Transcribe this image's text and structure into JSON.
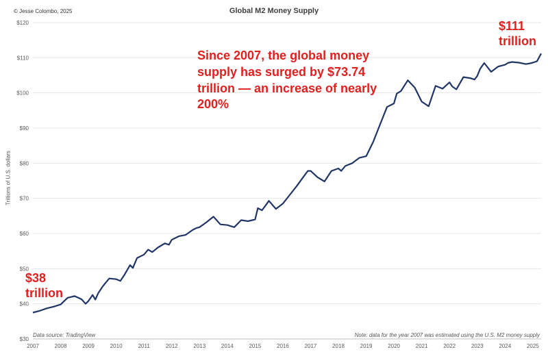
{
  "copyright": "© Jesse Colombo, 2025",
  "annotation": "Since 2007, the global money supply has surged by $73.74 trillion — an increase of nearly 200%",
  "callouts": {
    "start_value": "$38",
    "start_unit": "trillion",
    "end_value": "$111",
    "end_unit": "trillion"
  },
  "source_note": "Data source: TradingView",
  "estimate_note": "Note: data for the year 2007 was estimated using the U.S. M2 money supply",
  "colors": {
    "line": "#1f3566",
    "annotation": "#e0201f",
    "grid": "#e6e6e6"
  },
  "chart_data": {
    "type": "line",
    "title": "Global M2 Money Supply",
    "xlabel": "",
    "ylabel": "Trillions of U.S. dollars",
    "xlim": [
      2007.0,
      2025.3
    ],
    "ylim": [
      30,
      120
    ],
    "y_ticks": [
      30,
      40,
      50,
      60,
      70,
      80,
      90,
      100,
      110,
      120
    ],
    "y_tick_labels": [
      "$30",
      "$40",
      "$50",
      "$60",
      "$70",
      "$80",
      "$90",
      "$100",
      "$110",
      "$120"
    ],
    "x_ticks": [
      2007,
      2008,
      2009,
      2010,
      2011,
      2012,
      2013,
      2014,
      2015,
      2016,
      2017,
      2018,
      2019,
      2020,
      2021,
      2022,
      2023,
      2024,
      2025
    ],
    "x_tick_labels": [
      "2007",
      "2008",
      "2009",
      "2010",
      "2011",
      "2012",
      "2013",
      "2014",
      "2015",
      "2016",
      "2017",
      "2018",
      "2019",
      "2020",
      "2021",
      "2022",
      "2023",
      "2024",
      "2025"
    ],
    "grid": true,
    "series": [
      {
        "x": [
          2007.0,
          2007.25,
          2007.5,
          2007.75,
          2008.0,
          2008.25,
          2008.5,
          2008.75,
          2008.9,
          2009.0,
          2009.15,
          2009.25,
          2009.35,
          2009.5,
          2009.6,
          2009.75,
          2010.0,
          2010.15,
          2010.3,
          2010.5,
          2010.6,
          2010.75,
          2011.0,
          2011.15,
          2011.3,
          2011.5,
          2011.75,
          2011.9,
          2012.0,
          2012.25,
          2012.5,
          2012.75,
          2012.9,
          2013.0,
          2013.25,
          2013.5,
          2013.75,
          2014.0,
          2014.25,
          2014.5,
          2014.75,
          2015.0,
          2015.1,
          2015.25,
          2015.5,
          2015.75,
          2016.0,
          2016.25,
          2016.5,
          2016.75,
          2016.9,
          2017.0,
          2017.25,
          2017.5,
          2017.75,
          2018.0,
          2018.1,
          2018.25,
          2018.5,
          2018.75,
          2019.0,
          2019.25,
          2019.5,
          2019.75,
          2020.0,
          2020.1,
          2020.25,
          2020.5,
          2020.75,
          2021.0,
          2021.25,
          2021.5,
          2021.75,
          2022.0,
          2022.1,
          2022.25,
          2022.5,
          2022.75,
          2022.9,
          2023.0,
          2023.1,
          2023.25,
          2023.5,
          2023.75,
          2024.0,
          2024.1,
          2024.25,
          2024.5,
          2024.75,
          2024.9,
          2025.0,
          2025.15,
          2025.3
        ],
        "y": [
          37.5,
          38.0,
          38.7,
          39.2,
          39.8,
          41.7,
          42.2,
          41.3,
          40.0,
          40.8,
          42.5,
          41.2,
          43.0,
          44.8,
          45.8,
          47.2,
          47.0,
          46.5,
          48.3,
          51.0,
          50.2,
          53.0,
          54.0,
          55.4,
          54.7,
          56.0,
          57.2,
          56.8,
          58.2,
          59.2,
          59.6,
          61.0,
          61.6,
          61.8,
          63.2,
          64.8,
          62.6,
          62.4,
          61.8,
          63.8,
          63.5,
          64.0,
          67.2,
          66.6,
          69.3,
          67.0,
          68.5,
          71.0,
          73.5,
          76.2,
          77.8,
          77.8,
          76.0,
          74.8,
          77.8,
          78.5,
          77.8,
          79.2,
          80.0,
          81.5,
          82.0,
          86.0,
          91.0,
          96.0,
          97.0,
          99.8,
          100.5,
          103.6,
          101.5,
          97.5,
          96.2,
          102.0,
          101.2,
          103.0,
          101.8,
          101.0,
          104.5,
          104.2,
          103.8,
          104.8,
          106.8,
          108.5,
          106.0,
          107.5,
          108.0,
          108.5,
          108.8,
          108.6,
          108.2,
          108.4,
          108.6,
          109.0,
          111.2
        ]
      }
    ]
  }
}
